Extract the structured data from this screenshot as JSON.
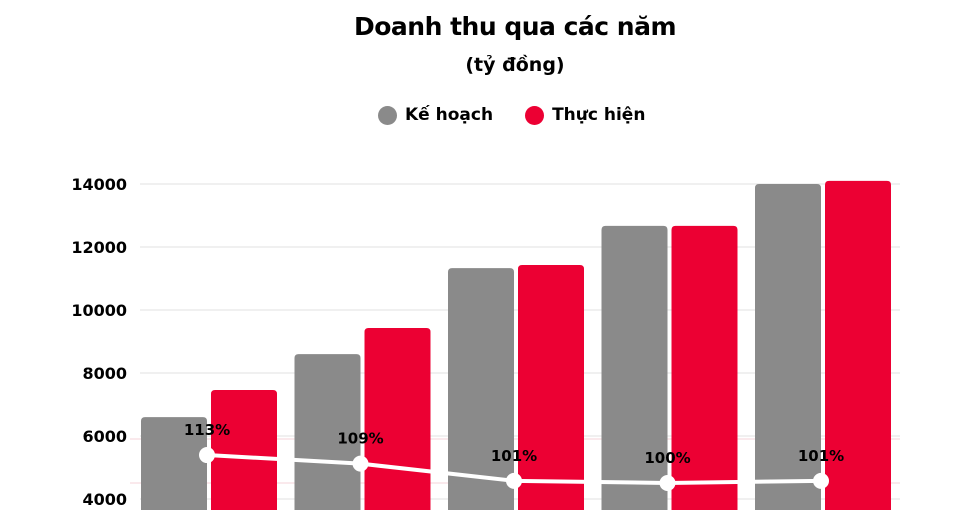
{
  "chart_data": {
    "type": "bar",
    "title": "Doanh thu qua các năm",
    "subtitle": "(tỷ đồng)",
    "legend_position": "top",
    "grid": true,
    "ylim": [
      4000,
      14000
    ],
    "yticks": [
      4000,
      6000,
      8000,
      10000,
      12000,
      14000
    ],
    "categories": [
      "",
      "",
      "",
      "",
      ""
    ],
    "series": [
      {
        "name": "Kế hoạch",
        "color": "#8a8a8a",
        "values": [
          6600,
          8600,
          11330,
          12670,
          14000
        ]
      },
      {
        "name": "Thực hiện",
        "color": "#ec0033",
        "values": [
          7460,
          9430,
          11430,
          12670,
          14100
        ]
      }
    ],
    "line": {
      "type": "line",
      "color": "#ffffff",
      "values": [
        113,
        109,
        101,
        100,
        101
      ],
      "labels": [
        "113%",
        "109%",
        "101%",
        "100%",
        "101%"
      ]
    }
  }
}
